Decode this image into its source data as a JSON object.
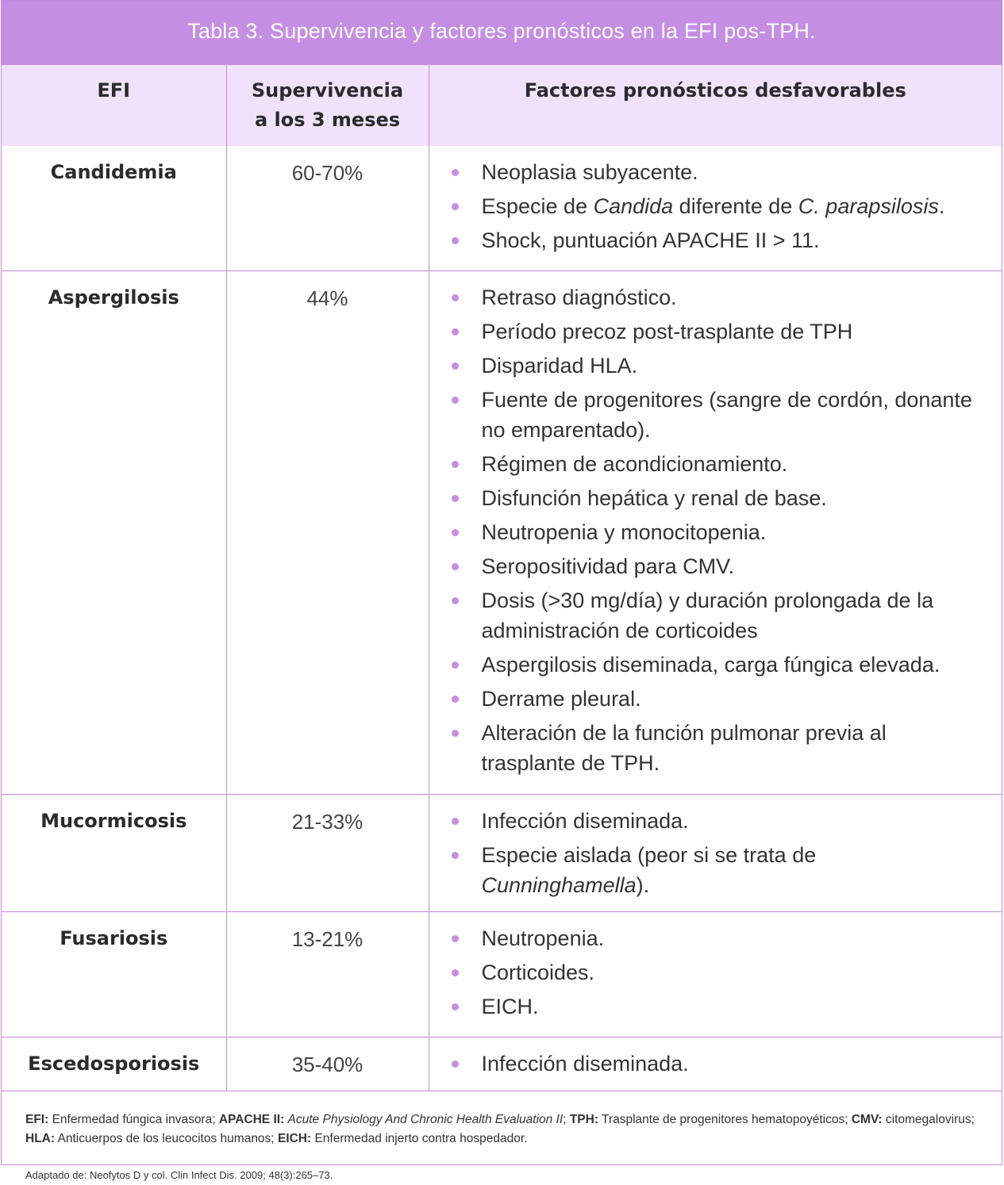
{
  "title": "Tabla 3. Supervivencia y factores pronósticos en la EFI pos-TPH.",
  "headers": {
    "col1": "EFI",
    "col2_line1": "Supervivencia",
    "col2_line2": "a los 3 meses",
    "col3": "Factores pronósticos desfavorables"
  },
  "rows": [
    {
      "name": "Candidemia",
      "survival": "60-70%",
      "factors": [
        "Neoplasia subyacente.",
        "Especie de Candida diferente de C. parapsilosis.",
        "Shock, puntuación APACHE II > 11."
      ]
    },
    {
      "name": "Aspergilosis",
      "survival": "44%",
      "factors": [
        "Retraso diagnóstico.",
        "Período precoz post-trasplante de TPH",
        "Disparidad HLA.",
        "Fuente de progenitores (sangre de cordón, donante no emparentado).",
        "Régimen de acondicionamiento.",
        "Disfunción hepática y renal de base.",
        "Neutropenia y monocitopenia.",
        "Seropositividad para CMV.",
        "Dosis (>30 mg/día) y duración prolongada de la administración de corticoides",
        "Aspergilosis diseminada, carga fúngica elevada.",
        "Derrame pleural.",
        "Alteración de la función pulmonar previa al trasplante de TPH."
      ]
    },
    {
      "name": "Mucormicosis",
      "survival": "21-33%",
      "factors": [
        "Infección diseminada.",
        "Especie aislada (peor si se trata de Cunninghamella)."
      ]
    },
    {
      "name": "Fusariosis",
      "survival": "13-21%",
      "factors": [
        "Neutropenia.",
        "Corticoides.",
        "EICH."
      ]
    },
    {
      "name": "Escedosporiosis",
      "survival": "35-40%",
      "factors": [
        "Infección diseminada."
      ]
    }
  ],
  "footnote": {
    "abbr": [
      {
        "term": "EFI:",
        "def": "Enfermedad fúngica invasora;"
      },
      {
        "term": "APACHE II:",
        "def": "Acute Physiology And Chronic Health Evaluation II;"
      },
      {
        "term": "TPH:",
        "def": "Trasplante de progenitores hematopoyéticos;"
      },
      {
        "term": "CMV:",
        "def": "citomegalovirus;"
      },
      {
        "term": "HLA:",
        "def": "Anticuerpos de los leucocitos humanos;"
      },
      {
        "term": "EICH:",
        "def": "Enfermedad injerto contra hospedador."
      }
    ],
    "source": "Adaptado de: Neofytos D y col. Clin Infect Dis. 2009; 48(3):265–73."
  },
  "colors": {
    "accent": "#c58ee3",
    "header_bg": "#f1e2fb",
    "border": "#c48ad8"
  }
}
